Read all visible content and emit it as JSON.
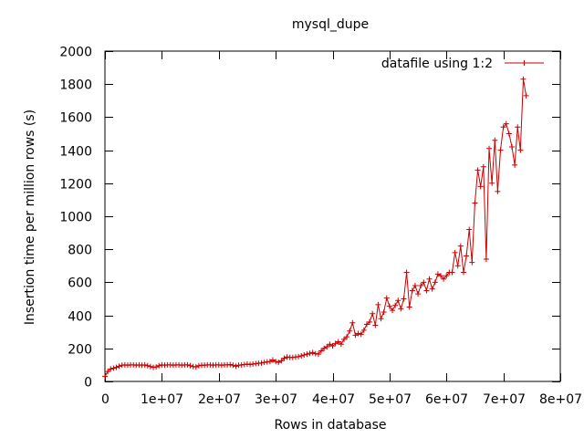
{
  "chart_data": {
    "type": "line",
    "title": "mysql_dupe",
    "xlabel": "Rows in database",
    "ylabel": "Insertion time per million rows (s)",
    "xlim": [
      0,
      80000000
    ],
    "ylim": [
      0,
      2000
    ],
    "x_ticks": [
      0,
      10000000,
      20000000,
      30000000,
      40000000,
      50000000,
      60000000,
      70000000,
      80000000
    ],
    "x_tick_labels": [
      "0",
      "1e+07",
      "2e+07",
      "3e+07",
      "4e+07",
      "5e+07",
      "6e+07",
      "7e+07",
      "8e+07"
    ],
    "y_ticks": [
      0,
      200,
      400,
      600,
      800,
      1000,
      1200,
      1400,
      1600,
      1800,
      2000
    ],
    "y_tick_labels": [
      "0",
      "200",
      "400",
      "600",
      "800",
      "1000",
      "1200",
      "1400",
      "1600",
      "1800",
      "2000"
    ],
    "grid": false,
    "legend_position": "top-right",
    "series": [
      {
        "name": "datafile using 1:2",
        "color": "#cc0000",
        "marker": "plus",
        "points": [
          [
            0,
            30
          ],
          [
            500000,
            60
          ],
          [
            1000000,
            75
          ],
          [
            1500000,
            80
          ],
          [
            2000000,
            85
          ],
          [
            2500000,
            92
          ],
          [
            3000000,
            98
          ],
          [
            3500000,
            100
          ],
          [
            4000000,
            98
          ],
          [
            4500000,
            100
          ],
          [
            5000000,
            100
          ],
          [
            5500000,
            98
          ],
          [
            6000000,
            100
          ],
          [
            6500000,
            98
          ],
          [
            7000000,
            100
          ],
          [
            7500000,
            95
          ],
          [
            8000000,
            90
          ],
          [
            8500000,
            85
          ],
          [
            9000000,
            88
          ],
          [
            9500000,
            95
          ],
          [
            10000000,
            100
          ],
          [
            10500000,
            98
          ],
          [
            11000000,
            100
          ],
          [
            11500000,
            100
          ],
          [
            12000000,
            98
          ],
          [
            12500000,
            100
          ],
          [
            13000000,
            100
          ],
          [
            13500000,
            98
          ],
          [
            14000000,
            100
          ],
          [
            14500000,
            100
          ],
          [
            15000000,
            95
          ],
          [
            15500000,
            90
          ],
          [
            16000000,
            88
          ],
          [
            16500000,
            95
          ],
          [
            17000000,
            98
          ],
          [
            17500000,
            98
          ],
          [
            18000000,
            100
          ],
          [
            18500000,
            100
          ],
          [
            19000000,
            98
          ],
          [
            19500000,
            100
          ],
          [
            20000000,
            100
          ],
          [
            20500000,
            98
          ],
          [
            21000000,
            100
          ],
          [
            21500000,
            100
          ],
          [
            22000000,
            102
          ],
          [
            22500000,
            98
          ],
          [
            23000000,
            92
          ],
          [
            23500000,
            98
          ],
          [
            24000000,
            100
          ],
          [
            24500000,
            102
          ],
          [
            25000000,
            105
          ],
          [
            25500000,
            102
          ],
          [
            26000000,
            105
          ],
          [
            26500000,
            108
          ],
          [
            27000000,
            110
          ],
          [
            27500000,
            112
          ],
          [
            28000000,
            115
          ],
          [
            28500000,
            118
          ],
          [
            29000000,
            120
          ],
          [
            29500000,
            130
          ],
          [
            30000000,
            120
          ],
          [
            30500000,
            115
          ],
          [
            31000000,
            125
          ],
          [
            31500000,
            140
          ],
          [
            32000000,
            148
          ],
          [
            32500000,
            145
          ],
          [
            33000000,
            145
          ],
          [
            33500000,
            148
          ],
          [
            34000000,
            150
          ],
          [
            34500000,
            155
          ],
          [
            35000000,
            160
          ],
          [
            35500000,
            165
          ],
          [
            36000000,
            170
          ],
          [
            36500000,
            175
          ],
          [
            37000000,
            168
          ],
          [
            37500000,
            165
          ],
          [
            38000000,
            185
          ],
          [
            38500000,
            200
          ],
          [
            39000000,
            210
          ],
          [
            39500000,
            225
          ],
          [
            40000000,
            215
          ],
          [
            40500000,
            230
          ],
          [
            41000000,
            240
          ],
          [
            41500000,
            225
          ],
          [
            42000000,
            255
          ],
          [
            42500000,
            270
          ],
          [
            43000000,
            305
          ],
          [
            43500000,
            355
          ],
          [
            44000000,
            280
          ],
          [
            44500000,
            290
          ],
          [
            45000000,
            285
          ],
          [
            45500000,
            310
          ],
          [
            46000000,
            345
          ],
          [
            46500000,
            360
          ],
          [
            47000000,
            410
          ],
          [
            47500000,
            340
          ],
          [
            48000000,
            465
          ],
          [
            48500000,
            380
          ],
          [
            49000000,
            420
          ],
          [
            49500000,
            505
          ],
          [
            50000000,
            455
          ],
          [
            50500000,
            430
          ],
          [
            51000000,
            460
          ],
          [
            51500000,
            490
          ],
          [
            52000000,
            440
          ],
          [
            52500000,
            500
          ],
          [
            53000000,
            660
          ],
          [
            53500000,
            450
          ],
          [
            54000000,
            550
          ],
          [
            54500000,
            580
          ],
          [
            55000000,
            530
          ],
          [
            55500000,
            580
          ],
          [
            56000000,
            600
          ],
          [
            56500000,
            550
          ],
          [
            57000000,
            620
          ],
          [
            57500000,
            560
          ],
          [
            58000000,
            600
          ],
          [
            58500000,
            650
          ],
          [
            59000000,
            640
          ],
          [
            59500000,
            620
          ],
          [
            60000000,
            640
          ],
          [
            60500000,
            660
          ],
          [
            61000000,
            660
          ],
          [
            61500000,
            780
          ],
          [
            62000000,
            700
          ],
          [
            62500000,
            820
          ],
          [
            63000000,
            660
          ],
          [
            63500000,
            760
          ],
          [
            64000000,
            920
          ],
          [
            64500000,
            720
          ],
          [
            65000000,
            1080
          ],
          [
            65500000,
            1280
          ],
          [
            66000000,
            1180
          ],
          [
            66500000,
            1300
          ],
          [
            67000000,
            740
          ],
          [
            67500000,
            1410
          ],
          [
            68000000,
            1200
          ],
          [
            68500000,
            1460
          ],
          [
            69000000,
            1150
          ],
          [
            69500000,
            1400
          ],
          [
            70000000,
            1540
          ],
          [
            70500000,
            1560
          ],
          [
            71000000,
            1500
          ],
          [
            71500000,
            1420
          ],
          [
            72000000,
            1310
          ],
          [
            72500000,
            1540
          ],
          [
            73000000,
            1400
          ],
          [
            73500000,
            1830
          ],
          [
            74000000,
            1730
          ]
        ]
      }
    ]
  }
}
